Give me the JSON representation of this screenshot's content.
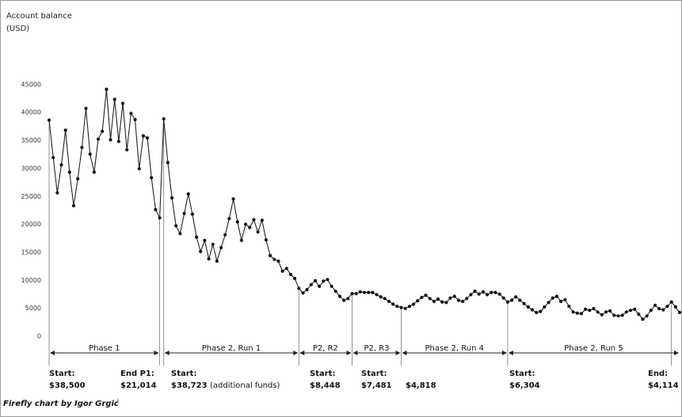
{
  "chart_data": {
    "type": "line",
    "title": "",
    "ylabel_line1": "Account balance",
    "ylabel_line2": "(USD)",
    "ylim": [
      -500,
      47000
    ],
    "yticks": [
      0,
      5000,
      10000,
      15000,
      20000,
      25000,
      30000,
      35000,
      40000,
      45000
    ],
    "grid": false,
    "series": [
      {
        "values": [
          38500,
          31800,
          25500,
          30500,
          36700,
          29200,
          23200,
          28000,
          33600,
          40600,
          32400,
          29200,
          35100,
          36500,
          44000,
          35000,
          42200,
          34700,
          41500,
          33200,
          39700,
          38600,
          29800,
          35700,
          35300,
          28200,
          22500,
          21014,
          38723,
          30900,
          24600,
          19600,
          18200,
          21800,
          25300,
          21700,
          17600,
          15000,
          17000,
          13700,
          16300,
          13300,
          15700,
          18000,
          20900,
          24400,
          20300,
          17000,
          19900,
          19300,
          20700,
          18500,
          20600,
          17100,
          14300,
          13600,
          13300,
          11500,
          12000,
          10900,
          10200,
          8448,
          7600,
          8200,
          9100,
          9800,
          8800,
          9700,
          10000,
          8800,
          7900,
          7000,
          6300,
          6600,
          7481,
          7481,
          7800,
          7700,
          7700,
          7700,
          7300,
          6900,
          6600,
          6100,
          5600,
          5200,
          5000,
          4818,
          5200,
          5600,
          6200,
          6800,
          7200,
          6600,
          6100,
          6500,
          6000,
          5900,
          6700,
          7000,
          6300,
          6100,
          6600,
          7300,
          7900,
          7400,
          7800,
          7300,
          7700,
          7700,
          7400,
          6700,
          6000,
          6304,
          6900,
          6300,
          5700,
          5100,
          4600,
          4100,
          4300,
          5100,
          5900,
          6700,
          7000,
          6100,
          6400,
          5200,
          4200,
          4000,
          3900,
          4700,
          4500,
          4800,
          4200,
          3700,
          4200,
          4400,
          3600,
          3500,
          3600,
          4200,
          4500,
          4700,
          3800,
          2900,
          3500,
          4500,
          5400,
          4800,
          4600,
          5200,
          6000,
          5100,
          4114
        ]
      }
    ],
    "phases": [
      {
        "label": "Phase 1",
        "start_index": 0,
        "end_index": 27
      },
      {
        "label": "Phase 2, Run 1",
        "start_index": 28,
        "end_index": 60
      },
      {
        "label": "P2, R2",
        "start_index": 61,
        "end_index": 73
      },
      {
        "label": "P2, R3",
        "start_index": 74,
        "end_index": 85
      },
      {
        "label": "Phase 2, Run 4",
        "start_index": 86,
        "end_index": 111
      },
      {
        "label": "Phase 2, Run 5",
        "start_index": 112,
        "end_index": 152
      }
    ],
    "annotations": [
      {
        "label": "Start:",
        "value": "$38,500",
        "note": ""
      },
      {
        "label": "End P1:",
        "value": "$21,014",
        "note": ""
      },
      {
        "label": "Start:",
        "value": "$38,723",
        "note": "(additional funds)"
      },
      {
        "label": "Start:",
        "value": "$8,448",
        "note": ""
      },
      {
        "label": "Start:",
        "value": "$7,481",
        "note": ""
      },
      {
        "label": "",
        "value": "$4,818",
        "note": ""
      },
      {
        "label": "Start:",
        "value": "$6,304",
        "note": ""
      },
      {
        "label": "End:",
        "value": "$4,114",
        "note": ""
      }
    ],
    "footer": "Firefly chart by Igor Grgić"
  }
}
